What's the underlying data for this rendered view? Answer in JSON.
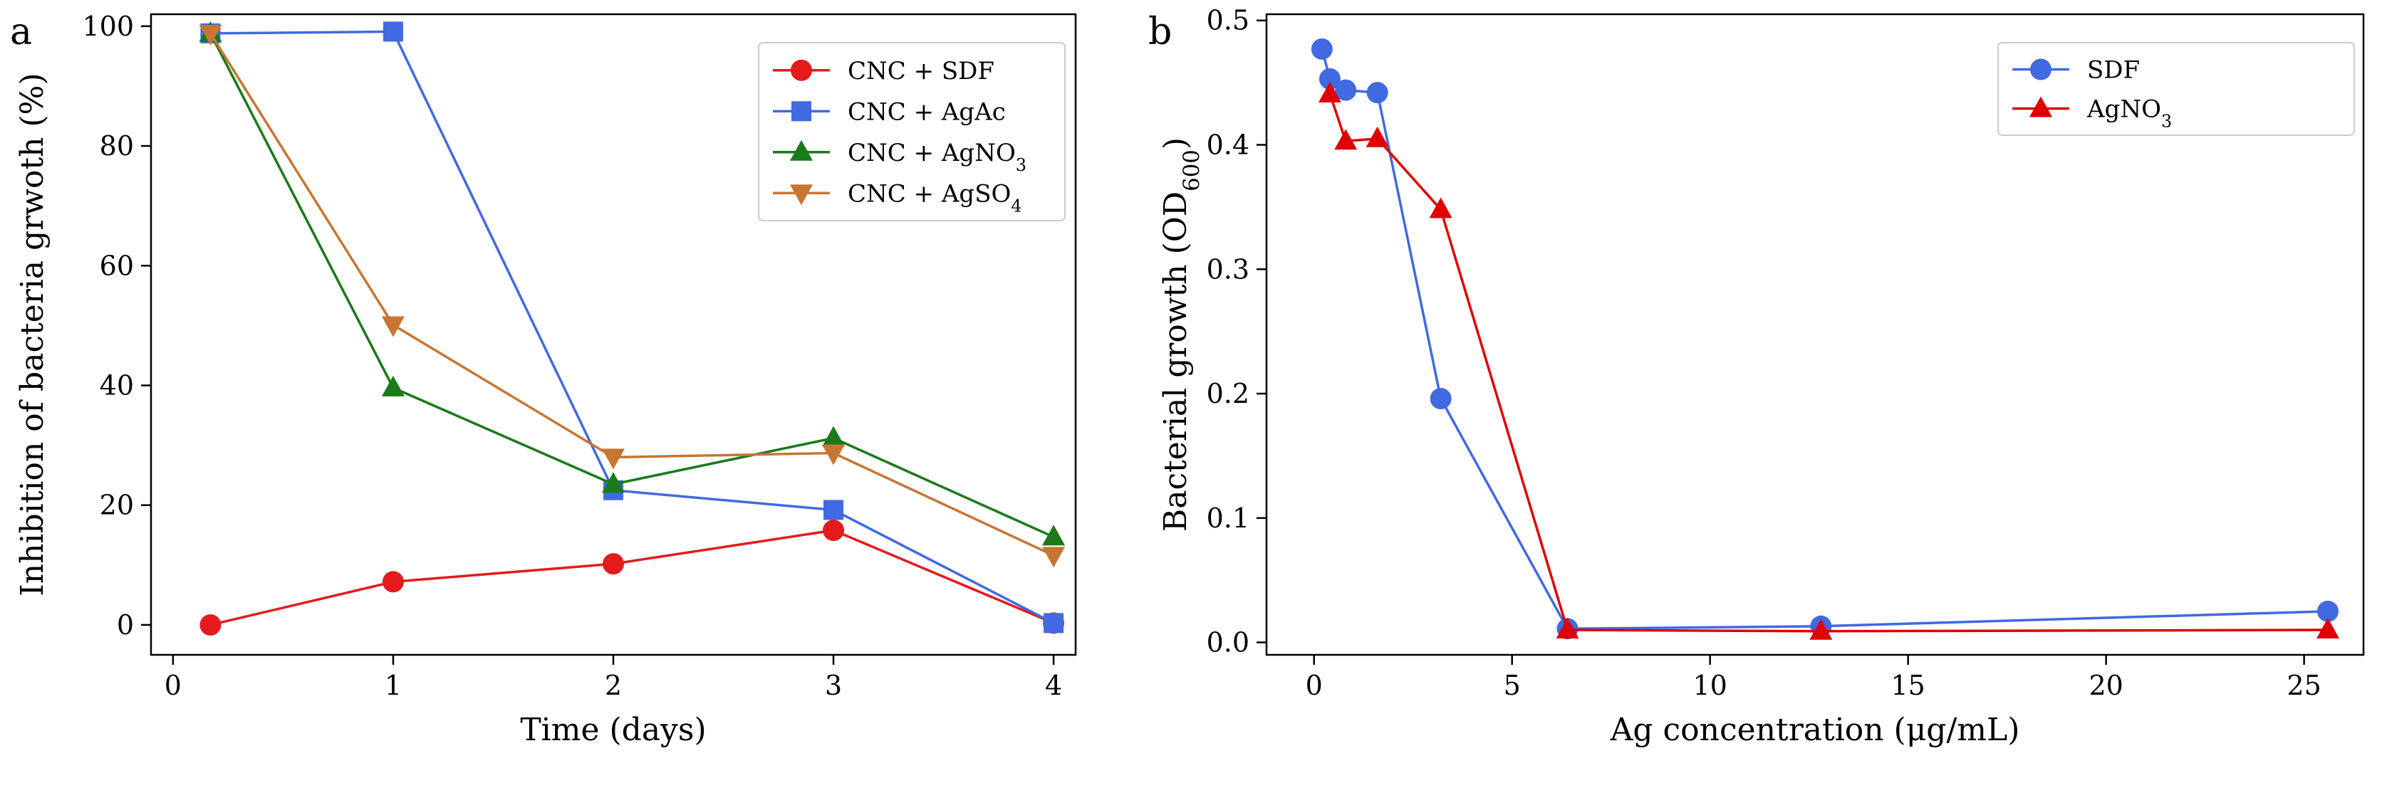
{
  "chart_data": [
    {
      "type": "line",
      "panel_label": "a",
      "xlabel": "Time (days)",
      "ylabel": "Inhibition of bacteria grwoth (%)",
      "xlim": [
        -0.1,
        4.1
      ],
      "ylim": [
        -5,
        102
      ],
      "xticks": [
        0,
        1,
        2,
        3,
        4
      ],
      "yticks": [
        0,
        20,
        40,
        60,
        80,
        100
      ],
      "grid": false,
      "legend_position": "top-right",
      "series": [
        {
          "name": "CNC + SDF",
          "label_main": "CNC + SDF",
          "label_sub": "",
          "label_tail": "",
          "color": "#e41a1c",
          "marker": "circle",
          "x": [
            0.17,
            1,
            2,
            3,
            4
          ],
          "values": [
            0,
            7.2,
            10.2,
            15.8,
            0.3
          ]
        },
        {
          "name": "CNC + AgAc",
          "label_main": "CNC + AgAc",
          "label_sub": "",
          "label_tail": "",
          "color": "#4169e1",
          "marker": "square",
          "x": [
            0.17,
            1,
            2,
            3,
            4
          ],
          "values": [
            98.8,
            99.1,
            22.5,
            19.2,
            0.3
          ]
        },
        {
          "name": "CNC + AgNO3",
          "label_main": "CNC + AgNO",
          "label_sub": "3",
          "label_tail": "",
          "color": "#1a7a1a",
          "marker": "triangle-up",
          "x": [
            0.17,
            1,
            2,
            3,
            4
          ],
          "values": [
            98.8,
            39.6,
            23.5,
            31.2,
            14.7
          ]
        },
        {
          "name": "CNC + AgSO4",
          "label_main": "CNC + AgSO",
          "label_sub": "4",
          "label_tail": "",
          "color": "#c87533",
          "marker": "triangle-down",
          "x": [
            0.17,
            1,
            2,
            3,
            4
          ],
          "values": [
            98.8,
            50.1,
            28.0,
            28.7,
            11.6
          ]
        }
      ]
    },
    {
      "type": "line",
      "panel_label": "b",
      "xlabel": "Ag concentration (μg/mL)",
      "ylabel_main": "Bacterial growth (OD",
      "ylabel_sub": "600",
      "ylabel_tail": ")",
      "xlim": [
        -1.2,
        26.5
      ],
      "ylim": [
        -0.01,
        0.505
      ],
      "xticks": [
        0,
        5,
        10,
        15,
        20,
        25
      ],
      "yticks": [
        0.0,
        0.1,
        0.2,
        0.3,
        0.4,
        0.5
      ],
      "yticklabels": [
        "0.0",
        "0.1",
        "0.2",
        "0.3",
        "0.4",
        "0.5"
      ],
      "grid": false,
      "legend_position": "top-right",
      "series": [
        {
          "name": "SDF",
          "label_main": "SDF",
          "label_sub": "",
          "label_tail": "",
          "color": "#4169e1",
          "marker": "circle",
          "x": [
            0.2,
            0.4,
            0.8,
            1.6,
            3.2,
            6.4,
            12.8,
            25.6
          ],
          "values": [
            0.477,
            0.453,
            0.444,
            0.442,
            0.196,
            0.011,
            0.013,
            0.025
          ]
        },
        {
          "name": "AgNO3",
          "label_main": "AgNO",
          "label_sub": "3",
          "label_tail": "",
          "color": "#e00000",
          "marker": "triangle-up",
          "x": [
            0.4,
            0.8,
            1.6,
            3.2,
            6.4,
            12.8,
            25.6
          ],
          "values": [
            0.441,
            0.403,
            0.405,
            0.348,
            0.01,
            0.009,
            0.01
          ]
        }
      ]
    }
  ]
}
